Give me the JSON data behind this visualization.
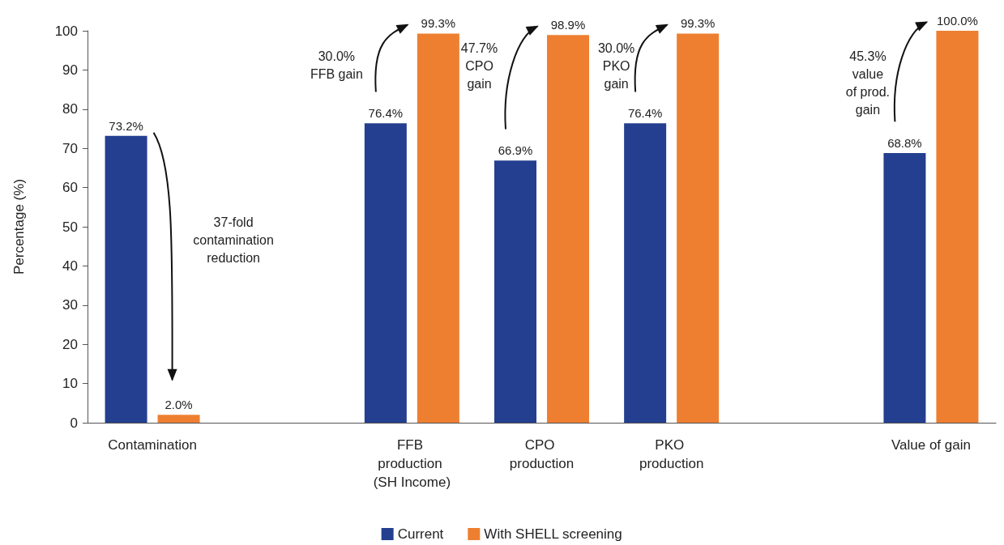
{
  "chart_data": {
    "type": "bar",
    "ylabel": "Percentage (%)",
    "categories": [
      "Contamination",
      null,
      "FFB production (SH Income)",
      "CPO production",
      "PKO production",
      null,
      "Value of gain"
    ],
    "series": [
      {
        "name": "Current",
        "color": "#243f8f",
        "values": [
          73.2,
          null,
          76.4,
          66.9,
          76.4,
          null,
          68.8
        ],
        "value_labels": [
          "73.2%",
          null,
          "76.4%",
          "66.9%",
          "76.4%",
          null,
          "68.8%"
        ]
      },
      {
        "name": "With SHELL screening",
        "color": "#ee7f31",
        "values": [
          2.0,
          null,
          99.3,
          98.9,
          99.3,
          null,
          100.0
        ],
        "value_labels": [
          "2.0%",
          null,
          "99.3%",
          "98.9%",
          "99.3%",
          null,
          "100.0%"
        ]
      }
    ],
    "ylim": [
      0,
      100
    ],
    "yticks": [
      0,
      10,
      20,
      30,
      40,
      50,
      60,
      70,
      80,
      90,
      100
    ],
    "annotations": [
      "37-fold contamination reduction",
      "30.0% FFB gain",
      "47.7% CPO gain",
      "30.0% PKO gain",
      "45.3% value of prod. gain"
    ],
    "grid": false,
    "legend": "bottom"
  }
}
